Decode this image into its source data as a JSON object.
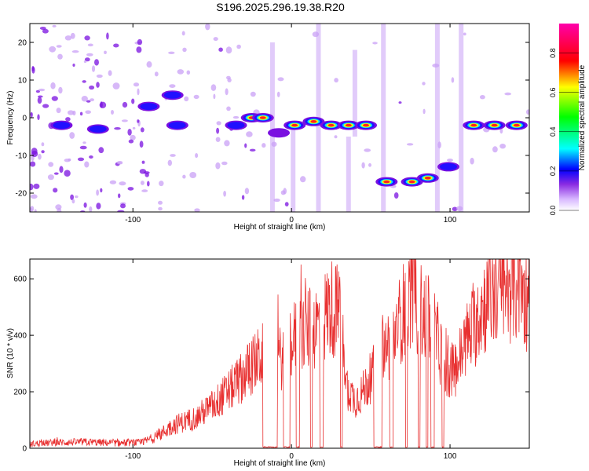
{
  "title": "S196.2025.296.19.38.R20",
  "chart_data": [
    {
      "type": "heatmap",
      "xlabel": "Height of straight line (km)",
      "ylabel": "Frequency (Hz)",
      "xlim": [
        -165,
        150
      ],
      "ylim": [
        -25,
        25
      ],
      "xticks": [
        -100,
        0,
        100
      ],
      "xtick_labels": [
        "-100",
        "0",
        "100"
      ],
      "yticks": [
        -20,
        -10,
        0,
        10,
        20
      ],
      "ytick_labels": [
        "-20",
        "-10",
        "0",
        "10",
        "20"
      ],
      "colorbar": {
        "label": "Normalized spectral amplitude",
        "range": [
          0,
          0.95
        ],
        "ticks": [
          0.0,
          0.2,
          0.4,
          0.6,
          0.8
        ],
        "tick_labels": [
          "0.0",
          "0.2",
          "0.4",
          "0.6",
          "0.8"
        ]
      },
      "features": [
        {
          "x": -145,
          "f": -2,
          "amp": 0.3
        },
        {
          "x": -122,
          "f": -3,
          "amp": 0.3
        },
        {
          "x": -90,
          "f": 3,
          "amp": 0.25
        },
        {
          "x": -75,
          "f": 6,
          "amp": 0.25
        },
        {
          "x": -72,
          "f": -2,
          "amp": 0.25
        },
        {
          "x": -35,
          "f": -2,
          "amp": 0.3
        },
        {
          "x": -25,
          "f": 0,
          "amp": 0.8
        },
        {
          "x": -18,
          "f": 0,
          "amp": 0.8
        },
        {
          "x": -8,
          "f": -4,
          "amp": 0.2
        },
        {
          "x": 2,
          "f": -2,
          "amp": 0.8
        },
        {
          "x": 14,
          "f": -1,
          "amp": 0.8
        },
        {
          "x": 25,
          "f": -2,
          "amp": 0.8
        },
        {
          "x": 36,
          "f": -2,
          "amp": 0.8
        },
        {
          "x": 47,
          "f": -2,
          "amp": 0.8
        },
        {
          "x": 60,
          "f": -17,
          "amp": 0.8
        },
        {
          "x": 76,
          "f": -17,
          "amp": 0.8
        },
        {
          "x": 86,
          "f": -16,
          "amp": 0.8
        },
        {
          "x": 99,
          "f": -13,
          "amp": 0.3
        },
        {
          "x": 115,
          "f": -2,
          "amp": 0.8
        },
        {
          "x": 128,
          "f": -2,
          "amp": 0.85
        },
        {
          "x": 142,
          "f": -2,
          "amp": 0.85
        }
      ]
    },
    {
      "type": "line",
      "xlabel": "Height of straight line (km)",
      "ylabel": "SNR (10 * v/v)",
      "xlim": [
        -165,
        150
      ],
      "ylim": [
        0,
        670
      ],
      "xticks": [
        -100,
        0,
        100
      ],
      "xtick_labels": [
        "-100",
        "0",
        "100"
      ],
      "yticks": [
        0,
        200,
        400,
        600
      ],
      "ytick_labels": [
        "0",
        "200",
        "400",
        "600"
      ],
      "series": [
        {
          "name": "SNR",
          "color": "#e83030",
          "x": [
            -165,
            -150,
            -130,
            -110,
            -95,
            -85,
            -75,
            -60,
            -50,
            -40,
            -30,
            -20,
            -15,
            -10,
            -5,
            0,
            5,
            10,
            15,
            20,
            25,
            30,
            35,
            40,
            45,
            50,
            55,
            60,
            65,
            70,
            75,
            80,
            85,
            90,
            95,
            100,
            105,
            110,
            115,
            120,
            130,
            140,
            150
          ],
          "values": [
            15,
            20,
            22,
            18,
            20,
            40,
            80,
            110,
            150,
            200,
            260,
            320,
            340,
            300,
            330,
            380,
            400,
            420,
            430,
            460,
            500,
            480,
            220,
            170,
            200,
            250,
            300,
            360,
            400,
            480,
            540,
            500,
            460,
            420,
            330,
            260,
            300,
            380,
            430,
            500,
            560,
            580,
            520
          ]
        }
      ],
      "dropout_regions": [
        {
          "x0": -18,
          "x1": -9
        },
        {
          "x0": -5,
          "x1": -1
        },
        {
          "x0": 3,
          "x1": 5
        },
        {
          "x0": 12,
          "x1": 13
        },
        {
          "x0": 18,
          "x1": 20
        },
        {
          "x0": 31,
          "x1": 32
        },
        {
          "x0": 52,
          "x1": 57
        },
        {
          "x0": 62,
          "x1": 64
        },
        {
          "x0": 72,
          "x1": 73
        },
        {
          "x0": 80,
          "x1": 81
        },
        {
          "x0": 85,
          "x1": 86
        },
        {
          "x0": 88,
          "x1": 90
        },
        {
          "x0": 95,
          "x1": 96
        }
      ]
    }
  ]
}
